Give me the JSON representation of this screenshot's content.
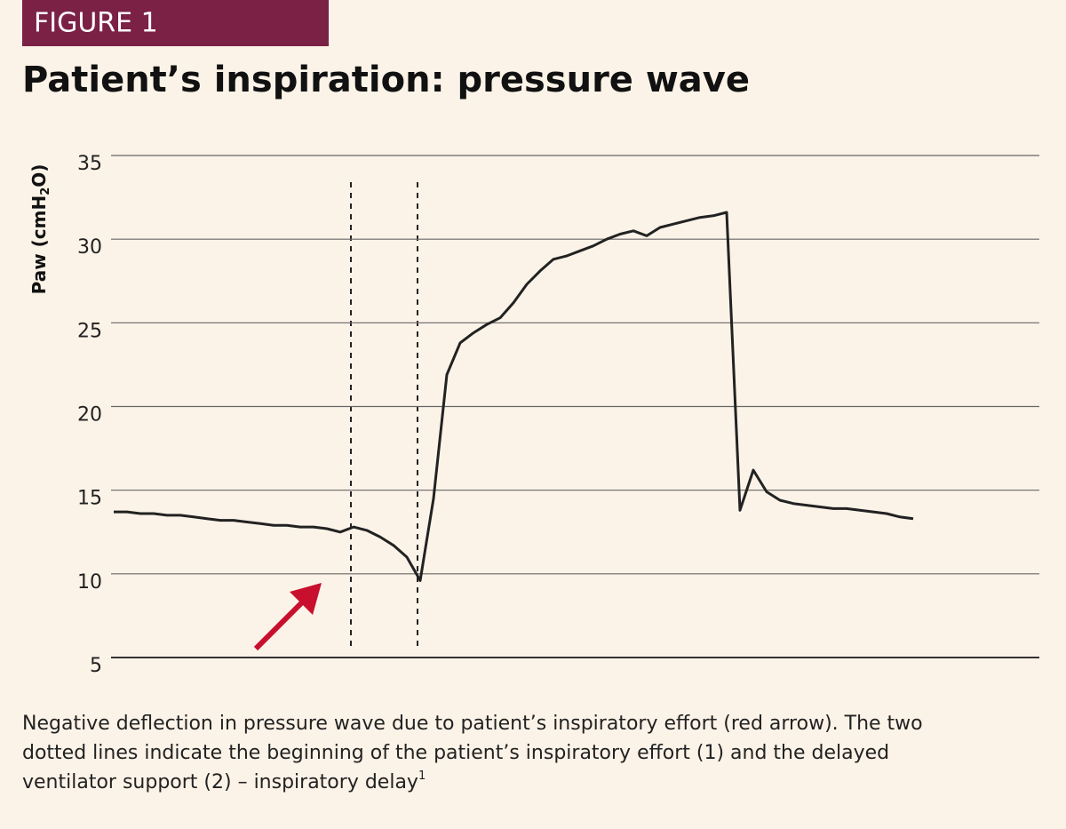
{
  "figure_label": "FIGURE 1",
  "chart_data": {
    "type": "line",
    "title": "Patient’s inspiration: pressure wave",
    "ylabel_parts": [
      "Paw (cmH",
      "2",
      "O)"
    ],
    "categories": [
      null,
      null,
      null,
      null,
      null,
      null,
      null,
      null,
      null,
      null,
      null,
      null,
      null,
      null,
      null,
      null,
      null,
      null,
      null,
      null,
      null,
      null,
      null,
      null,
      null,
      null,
      null,
      null,
      null,
      null,
      null,
      null,
      null,
      null,
      null,
      null,
      null,
      null,
      null,
      null,
      null,
      null,
      null,
      null,
      null,
      null,
      null,
      null,
      null,
      null,
      null,
      null,
      null,
      null,
      null,
      null,
      null,
      null,
      null,
      null,
      null
    ],
    "values": [
      13.7,
      13.7,
      13.6,
      13.6,
      13.5,
      13.5,
      13.4,
      13.3,
      13.2,
      13.2,
      13.1,
      13.0,
      12.9,
      12.9,
      12.8,
      12.8,
      12.7,
      12.5,
      12.8,
      12.6,
      12.2,
      11.7,
      11.0,
      9.6,
      14.5,
      21.9,
      23.8,
      24.4,
      24.9,
      25.3,
      26.2,
      27.3,
      28.1,
      28.8,
      29.0,
      29.3,
      29.6,
      30.0,
      30.3,
      30.5,
      30.2,
      30.7,
      30.9,
      31.1,
      31.3,
      31.4,
      31.6,
      13.8,
      16.2,
      14.9,
      14.4,
      14.2,
      14.1,
      14.0,
      13.9,
      13.9,
      13.8,
      13.7,
      13.6,
      13.4,
      13.3
    ],
    "color": "#222222",
    "ylim": [
      5,
      35
    ],
    "yticks": [
      5,
      10,
      15,
      20,
      25,
      30,
      35
    ],
    "grid": true
  },
  "caption": {
    "lines": [
      "Negative deflection in pressure wave due to patient’s inspiratory effort (red arrow). The two",
      "dotted lines indicate the beginning of the patient’s inspiratory effort (1) and the delayed",
      "ventilator support (2) – inspiratory delay"
    ],
    "footnote": "1"
  }
}
